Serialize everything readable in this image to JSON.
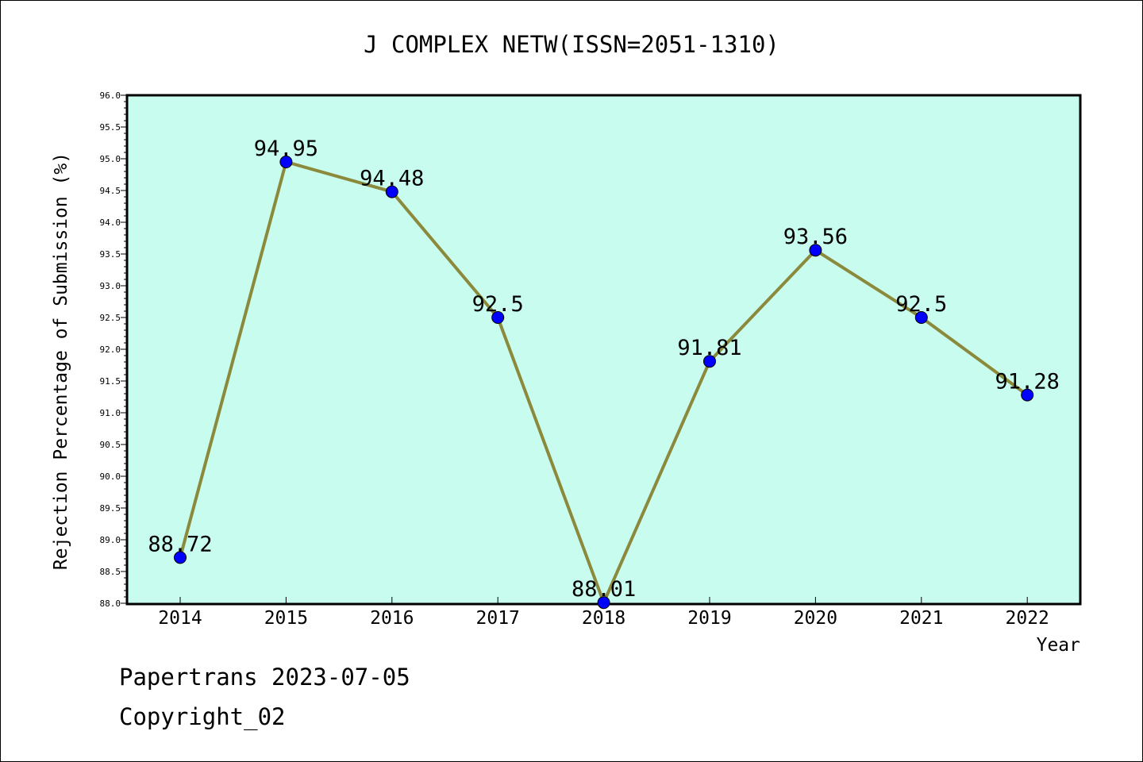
{
  "chart_data": {
    "type": "line",
    "title": "J COMPLEX NETW(ISSN=2051-1310)",
    "xlabel": "Year",
    "ylabel": "Rejection Percentage of Submission (%)",
    "categories": [
      "2014",
      "2015",
      "2016",
      "2017",
      "2018",
      "2019",
      "2020",
      "2021",
      "2022"
    ],
    "series": [
      {
        "values": [
          88.72,
          94.95,
          94.48,
          92.5,
          88.01,
          91.81,
          93.56,
          92.5,
          91.28
        ],
        "labels": [
          "88.72",
          "94.95",
          "94.48",
          "92.5",
          "88.01",
          "91.81",
          "93.56",
          "92.5",
          "91.28"
        ]
      }
    ],
    "ylim": [
      88.0,
      96.0
    ],
    "ytick_step": 0.5,
    "ytick_labels": [
      "88.0",
      "88.5",
      "89.0",
      "89.5",
      "90.0",
      "90.5",
      "91.0",
      "91.5",
      "92.0",
      "92.5",
      "93.0",
      "93.5",
      "94.0",
      "94.5",
      "95.0",
      "95.5",
      "96.0"
    ],
    "grid": false,
    "colors": {
      "plot_background": "#c8fcee",
      "line": "#8b8a3c",
      "marker": "#0000ff"
    }
  },
  "footer": {
    "line1": "Papertrans 2023-07-05",
    "line2": "Copyright_02"
  }
}
